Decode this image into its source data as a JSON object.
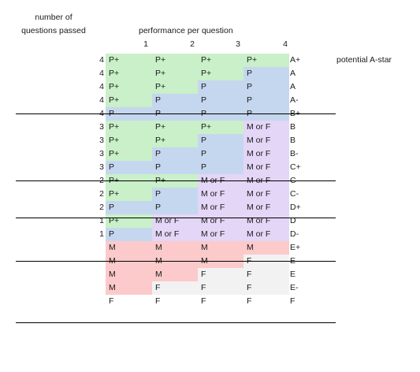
{
  "headers": {
    "left_line1": "number of",
    "left_line2": "questions passed",
    "performance": "performance per question",
    "question_numbers": [
      "1",
      "2",
      "3",
      "4"
    ]
  },
  "colors": {
    "P+": "#c9f0c9",
    "P": "#c5d7ee",
    "MorF": "#e3d6f7",
    "M": "#fccaca",
    "F": "#f2f2f2"
  },
  "rows": [
    {
      "passed": "4",
      "cells": [
        "P+",
        "P+",
        "P+",
        "P+"
      ],
      "fills": [
        "P+",
        "P+",
        "P+",
        "P+"
      ],
      "grade": "A+",
      "note": "potential A-star"
    },
    {
      "passed": "4",
      "cells": [
        "P+",
        "P+",
        "P+",
        "P"
      ],
      "fills": [
        "P+",
        "P+",
        "P+",
        "P"
      ],
      "grade": "A"
    },
    {
      "passed": "4",
      "cells": [
        "P+",
        "P+",
        "P",
        "P"
      ],
      "fills": [
        "P+",
        "P+",
        "P",
        "P"
      ],
      "grade": "A"
    },
    {
      "passed": "4",
      "cells": [
        "P+",
        "P",
        "P",
        "P"
      ],
      "fills": [
        "P+",
        "P",
        "P",
        "P"
      ],
      "grade": "A-"
    },
    {
      "passed": "4",
      "cells": [
        "P",
        "P",
        "P",
        "P"
      ],
      "fills": [
        "P",
        "P",
        "P",
        "P"
      ],
      "grade": "B+"
    },
    {
      "passed": "3",
      "cells": [
        "P+",
        "P+",
        "P+",
        "M or F"
      ],
      "fills": [
        "P+",
        "P+",
        "P+",
        "MorF"
      ],
      "grade": "B"
    },
    {
      "passed": "3",
      "cells": [
        "P+",
        "P+",
        "P",
        "M or F"
      ],
      "fills": [
        "P+",
        "P+",
        "P",
        "MorF"
      ],
      "grade": "B"
    },
    {
      "passed": "3",
      "cells": [
        "P+",
        "P",
        "P",
        "M or F"
      ],
      "fills": [
        "P+",
        "P",
        "P",
        "MorF"
      ],
      "grade": "B-"
    },
    {
      "passed": "3",
      "cells": [
        "P",
        "P",
        "P",
        "M or F"
      ],
      "fills": [
        "P",
        "P",
        "P",
        "MorF"
      ],
      "grade": "C+"
    },
    {
      "passed": "2",
      "cells": [
        "P+",
        "P+",
        "M or F",
        "M or F"
      ],
      "fills": [
        "P+",
        "P+",
        "MorF",
        "MorF"
      ],
      "grade": "C"
    },
    {
      "passed": "2",
      "cells": [
        "P+",
        "P",
        "M or F",
        "M or F"
      ],
      "fills": [
        "P+",
        "P",
        "MorF",
        "MorF"
      ],
      "grade": "C-"
    },
    {
      "passed": "2",
      "cells": [
        "P",
        "P",
        "M or F",
        "M or F"
      ],
      "fills": [
        "P",
        "P",
        "MorF",
        "MorF"
      ],
      "grade": "D+"
    },
    {
      "passed": "1",
      "cells": [
        "P+",
        "M or F",
        "M or F",
        "M or F"
      ],
      "fills": [
        "P+",
        "MorF",
        "MorF",
        "MorF"
      ],
      "grade": "D"
    },
    {
      "passed": "1",
      "cells": [
        "P",
        "M or F",
        "M or F",
        "M or F"
      ],
      "fills": [
        "P",
        "MorF",
        "MorF",
        "MorF"
      ],
      "grade": "D-"
    },
    {
      "passed": "",
      "cells": [
        "M",
        "M",
        "M",
        "M"
      ],
      "fills": [
        "M",
        "M",
        "M",
        "M"
      ],
      "grade": "E+"
    },
    {
      "passed": "",
      "cells": [
        "M",
        "M",
        "M",
        "F"
      ],
      "fills": [
        "M",
        "M",
        "M",
        "F"
      ],
      "grade": "E"
    },
    {
      "passed": "",
      "cells": [
        "M",
        "M",
        "F",
        "F"
      ],
      "fills": [
        "M",
        "M",
        "F",
        "F"
      ],
      "grade": "E"
    },
    {
      "passed": "",
      "cells": [
        "M",
        "F",
        "F",
        "F"
      ],
      "fills": [
        "M",
        "F",
        "F",
        "F"
      ],
      "grade": "E-"
    },
    {
      "passed": "",
      "cells": [
        "F",
        "F",
        "F",
        "F"
      ],
      "fills": [
        "none",
        "none",
        "none",
        "none"
      ],
      "grade": "F"
    }
  ]
}
